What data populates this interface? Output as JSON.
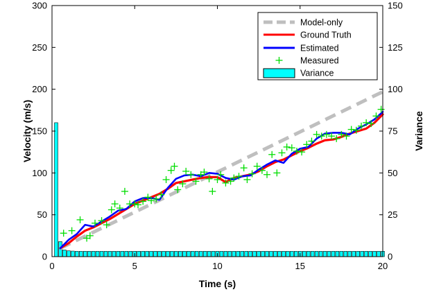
{
  "chart_data": {
    "type": "line",
    "title": "",
    "xlabel": "Time (s)",
    "ylabel": "Velocity (m/s)",
    "y2label": "Variance",
    "xlim": [
      0,
      20
    ],
    "ylim": [
      0,
      300
    ],
    "y2lim": [
      0,
      150
    ],
    "xticks": [
      "0",
      "5",
      "10",
      "15",
      "20"
    ],
    "yticks": [
      "0",
      "50",
      "100",
      "150",
      "200",
      "250",
      "300"
    ],
    "y2ticks": [
      "0",
      "25",
      "50",
      "75",
      "100",
      "125",
      "150"
    ],
    "grid": false,
    "legend_position": "top-right",
    "colors": {
      "model_only": "#bfbfbf",
      "ground_truth": "#ff0000",
      "estimated": "#0000ff",
      "measured": "#00dd00",
      "variance_fill": "#00ffff"
    },
    "series": [
      {
        "name": "Model-only",
        "style": "dashed",
        "x": [
          0.5,
          20
        ],
        "y": [
          10,
          197
        ]
      },
      {
        "name": "Ground Truth",
        "x": [
          0.5,
          1.0,
          1.5,
          2.0,
          2.5,
          3.0,
          3.5,
          4.0,
          4.5,
          5.0,
          5.5,
          6.0,
          6.5,
          7.0,
          7.5,
          8.0,
          8.5,
          9.0,
          9.5,
          10.0,
          10.5,
          11.0,
          11.5,
          12.0,
          12.5,
          13.0,
          13.5,
          14.0,
          14.5,
          15.0,
          15.5,
          16.0,
          16.5,
          17.0,
          17.5,
          18.0,
          18.5,
          19.0,
          19.5,
          20.0
        ],
        "y": [
          10,
          16,
          24,
          31,
          35,
          40,
          45,
          51,
          57,
          63,
          67,
          71,
          75,
          81,
          88,
          90,
          92,
          94,
          95,
          95,
          89,
          94,
          96,
          98,
          102,
          108,
          113,
          116,
          121,
          126,
          130,
          135,
          139,
          140,
          143,
          147,
          150,
          153,
          160,
          170
        ]
      },
      {
        "name": "Estimated",
        "x": [
          0.5,
          1.0,
          1.5,
          2.0,
          2.5,
          3.0,
          3.5,
          4.0,
          4.5,
          5.0,
          5.5,
          6.0,
          6.5,
          7.0,
          7.5,
          8.0,
          8.5,
          9.0,
          9.5,
          10.0,
          10.5,
          11.0,
          11.5,
          12.0,
          12.5,
          13.0,
          13.5,
          14.0,
          14.5,
          15.0,
          15.5,
          16.0,
          16.5,
          17.0,
          17.5,
          18.0,
          18.5,
          19.0,
          19.5,
          20.0
        ],
        "y": [
          10,
          20,
          27,
          38,
          36,
          42,
          48,
          55,
          57,
          66,
          70,
          70,
          68,
          82,
          93,
          97,
          98,
          96,
          100,
          99,
          94,
          92,
          96,
          97,
          104,
          110,
          115,
          112,
          123,
          129,
          131,
          141,
          147,
          148,
          148,
          146,
          153,
          158,
          164,
          173
        ]
      },
      {
        "name": "Measured",
        "marker": "+",
        "x": [
          0.7,
          1.2,
          1.7,
          2.1,
          2.3,
          2.6,
          3.0,
          3.3,
          3.6,
          3.8,
          4.1,
          4.4,
          4.7,
          5.0,
          5.2,
          5.5,
          5.8,
          6.0,
          6.3,
          6.6,
          6.9,
          7.2,
          7.4,
          7.6,
          7.9,
          8.1,
          8.4,
          8.7,
          9.0,
          9.2,
          9.5,
          9.7,
          10.0,
          10.2,
          10.5,
          10.8,
          11.0,
          11.3,
          11.6,
          11.8,
          12.1,
          12.4,
          12.7,
          13.0,
          13.3,
          13.6,
          13.9,
          14.2,
          14.5,
          14.8,
          15.1,
          15.4,
          15.7,
          16.0,
          16.3,
          16.6,
          16.9,
          17.2,
          17.5,
          17.8,
          18.1,
          18.4,
          18.7,
          19.0,
          19.3,
          19.6,
          19.9
        ],
        "y": [
          28,
          31,
          44,
          22,
          25,
          40,
          43,
          38,
          56,
          63,
          58,
          78,
          63,
          63,
          62,
          66,
          71,
          67,
          69,
          74,
          92,
          103,
          108,
          80,
          87,
          102,
          98,
          90,
          98,
          101,
          93,
          78,
          92,
          98,
          88,
          90,
          94,
          96,
          106,
          92,
          99,
          108,
          103,
          98,
          122,
          100,
          124,
          131,
          130,
          126,
          125,
          134,
          138,
          146,
          144,
          146,
          144,
          141,
          146,
          144,
          152,
          151,
          156,
          160,
          159,
          168,
          176
        ]
      },
      {
        "name": "Variance",
        "type": "bar",
        "axis": "right",
        "x": [
          0.25,
          0.5,
          0.75,
          1.0,
          1.25,
          1.5,
          1.75,
          2.0,
          2.25,
          2.5,
          2.75,
          3.0,
          3.25,
          3.5,
          3.75,
          4.0,
          4.25,
          4.5,
          4.75,
          5.0,
          5.25,
          5.5,
          5.75,
          6.0,
          6.25,
          6.5,
          6.75,
          7.0,
          7.25,
          7.5,
          7.75,
          8.0,
          8.25,
          8.5,
          8.75,
          9.0,
          9.25,
          9.5,
          9.75,
          10.0,
          10.25,
          10.5,
          10.75,
          11.0,
          11.25,
          11.5,
          11.75,
          12.0,
          12.25,
          12.5,
          12.75,
          13.0,
          13.25,
          13.5,
          13.75,
          14.0,
          14.25,
          14.5,
          14.75,
          15.0,
          15.25,
          15.5,
          15.75,
          16.0,
          16.25,
          16.5,
          16.75,
          17.0,
          17.25,
          17.5,
          17.75,
          18.0,
          18.25,
          18.5,
          18.75,
          19.0,
          19.25,
          19.5,
          19.75,
          20.0
        ],
        "y": [
          80,
          9,
          4,
          3.5,
          3.3,
          3.2,
          3.2,
          3.2,
          3.2,
          3.2,
          3.2,
          3.2,
          3.2,
          3.2,
          3.2,
          3.2,
          3.2,
          3.2,
          3.2,
          3.2,
          3.2,
          3.2,
          3.2,
          3.2,
          3.2,
          3.2,
          3.2,
          3.2,
          3.2,
          3.2,
          3.2,
          3.2,
          3.2,
          3.2,
          3.2,
          3.2,
          3.2,
          3.2,
          3.2,
          3.2,
          3.2,
          3.2,
          3.2,
          3.2,
          3.2,
          3.2,
          3.2,
          3.2,
          3.2,
          3.2,
          3.2,
          3.2,
          3.2,
          3.2,
          3.2,
          3.2,
          3.2,
          3.2,
          3.2,
          3.2,
          3.2,
          3.2,
          3.2,
          3.2,
          3.2,
          3.2,
          3.2,
          3.2,
          3.2,
          3.2,
          3.2,
          3.2,
          3.2,
          3.2,
          3.2,
          3.2,
          3.2,
          3.2,
          3.2,
          3.2
        ]
      }
    ]
  }
}
